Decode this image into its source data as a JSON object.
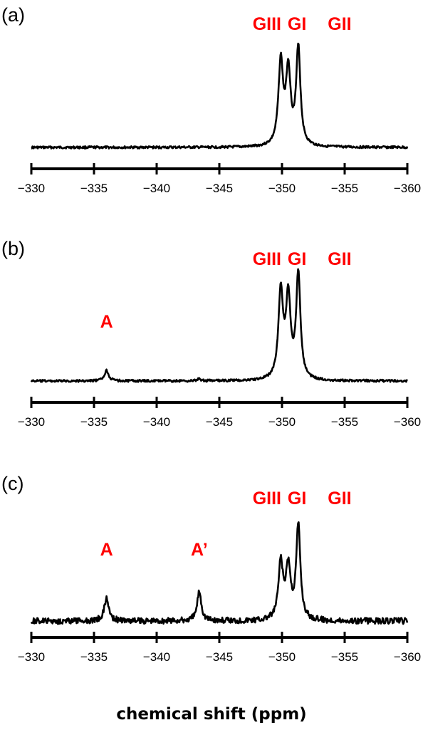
{
  "chart_data": [
    {
      "type": "line",
      "panel": "(a)",
      "xlim": [
        -330,
        -360
      ],
      "xticks": [
        "−330",
        "−335",
        "−340",
        "−345",
        "−350",
        "−355",
        "−360"
      ],
      "tick_values": [
        -330,
        -335,
        -340,
        -345,
        -350,
        -355,
        -360
      ],
      "label_color": "#ff0000",
      "peaks": [
        {
          "x": -349.9,
          "height": 0.85,
          "width": 0.22
        },
        {
          "x": -350.5,
          "height": 0.75,
          "width": 0.22
        },
        {
          "x": -351.3,
          "height": 1.0,
          "width": 0.2
        }
      ],
      "annotations": [
        {
          "text": "GIII",
          "x": -348.8
        },
        {
          "text": "GI",
          "x": -351.2
        },
        {
          "text": "GII",
          "x": -354.6
        }
      ]
    },
    {
      "type": "line",
      "panel": "(b)",
      "xlim": [
        -330,
        -360
      ],
      "xticks": [
        "−330",
        "−335",
        "−340",
        "−345",
        "−350",
        "−355",
        "−360"
      ],
      "tick_values": [
        -330,
        -335,
        -340,
        -345,
        -350,
        -355,
        -360
      ],
      "label_color": "#ff0000",
      "peaks": [
        {
          "x": -336.0,
          "height": 0.1,
          "width": 0.2
        },
        {
          "x": -343.4,
          "height": 0.02,
          "width": 0.15
        },
        {
          "x": -349.9,
          "height": 0.83,
          "width": 0.22
        },
        {
          "x": -350.5,
          "height": 0.76,
          "width": 0.22
        },
        {
          "x": -351.3,
          "height": 1.0,
          "width": 0.2
        }
      ],
      "annotations": [
        {
          "text": "A",
          "x": -336.0
        },
        {
          "text": "GIII",
          "x": -348.8
        },
        {
          "text": "GI",
          "x": -351.2
        },
        {
          "text": "GII",
          "x": -354.6
        }
      ]
    },
    {
      "type": "line",
      "panel": "(c)",
      "xlim": [
        -330,
        -360
      ],
      "xticks": [
        "−330",
        "−335",
        "−340",
        "−345",
        "−350",
        "−355",
        "−360"
      ],
      "tick_values": [
        -330,
        -335,
        -340,
        -345,
        -350,
        -355,
        -360
      ],
      "label_color": "#ff0000",
      "peaks": [
        {
          "x": -336.0,
          "height": 0.24,
          "width": 0.22
        },
        {
          "x": -343.4,
          "height": 0.32,
          "width": 0.2
        },
        {
          "x": -349.9,
          "height": 0.6,
          "width": 0.22
        },
        {
          "x": -350.5,
          "height": 0.55,
          "width": 0.22
        },
        {
          "x": -351.3,
          "height": 1.0,
          "width": 0.2
        }
      ],
      "annotations": [
        {
          "text": "A",
          "x": -336.0
        },
        {
          "text": "A’",
          "x": -343.4
        },
        {
          "text": "GIII",
          "x": -348.8
        },
        {
          "text": "GI",
          "x": -351.2
        },
        {
          "text": "GII",
          "x": -354.6
        }
      ]
    }
  ],
  "xlabel": "chemical shift (ppm)"
}
